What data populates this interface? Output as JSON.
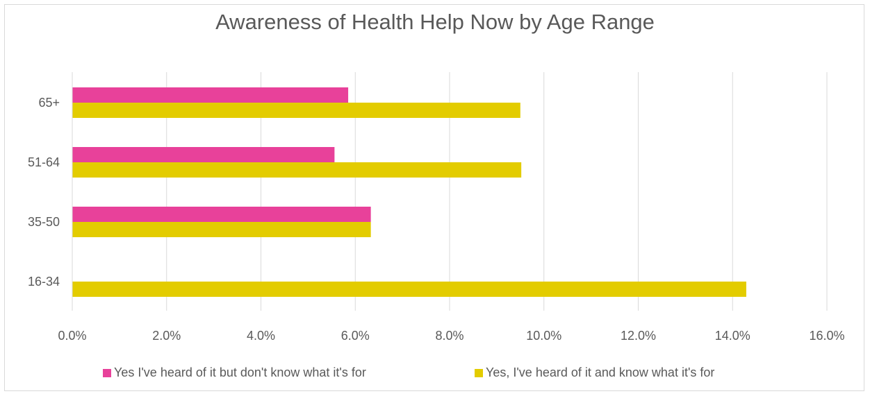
{
  "chart_data": {
    "type": "bar",
    "orientation": "horizontal",
    "title": "Awareness of Health Help Now by Age Range",
    "categories": [
      "65+",
      "51-64",
      "35-50",
      "16-34"
    ],
    "series": [
      {
        "name": "Yes I've heard of it but don't know what it's for",
        "color": "#e8419a",
        "values": [
          5.85,
          5.56,
          6.33,
          0
        ]
      },
      {
        "name": "Yes,  I've heard of it and know what it's for",
        "color": "#e3cc00",
        "values": [
          9.5,
          9.52,
          6.33,
          14.29
        ]
      }
    ],
    "xlim": [
      0,
      16
    ],
    "xticks": [
      "0.0%",
      "2.0%",
      "4.0%",
      "6.0%",
      "8.0%",
      "10.0%",
      "12.0%",
      "14.0%",
      "16.0%"
    ],
    "grid": true,
    "legend_position": "bottom"
  }
}
